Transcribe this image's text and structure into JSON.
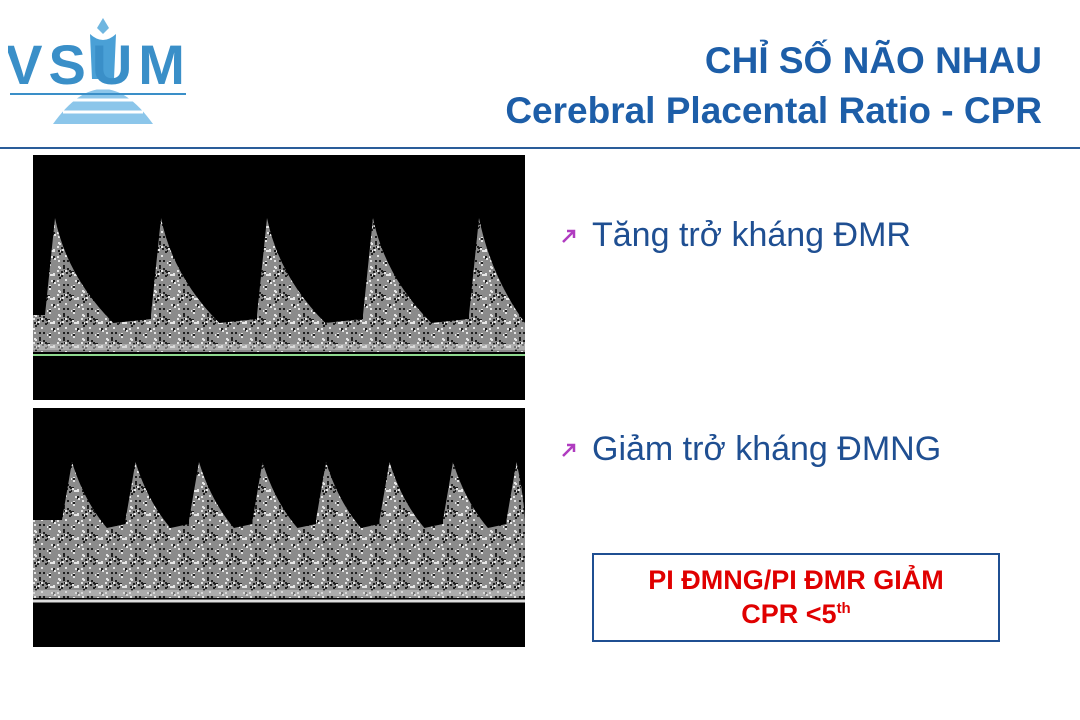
{
  "logo": {
    "text": "VSUM"
  },
  "header": {
    "title": "CHỈ SỐ NÃO NHAU",
    "subtitle": "Cerebral Placental Ratio - CPR"
  },
  "bullets": [
    "Tăng trở kháng ĐMR",
    "Giảm trở kháng ĐMNG"
  ],
  "box": {
    "line1": "PI ĐMNG/PI ĐMR GIẢM",
    "line2": "CPR <5",
    "superscript": "th"
  }
}
